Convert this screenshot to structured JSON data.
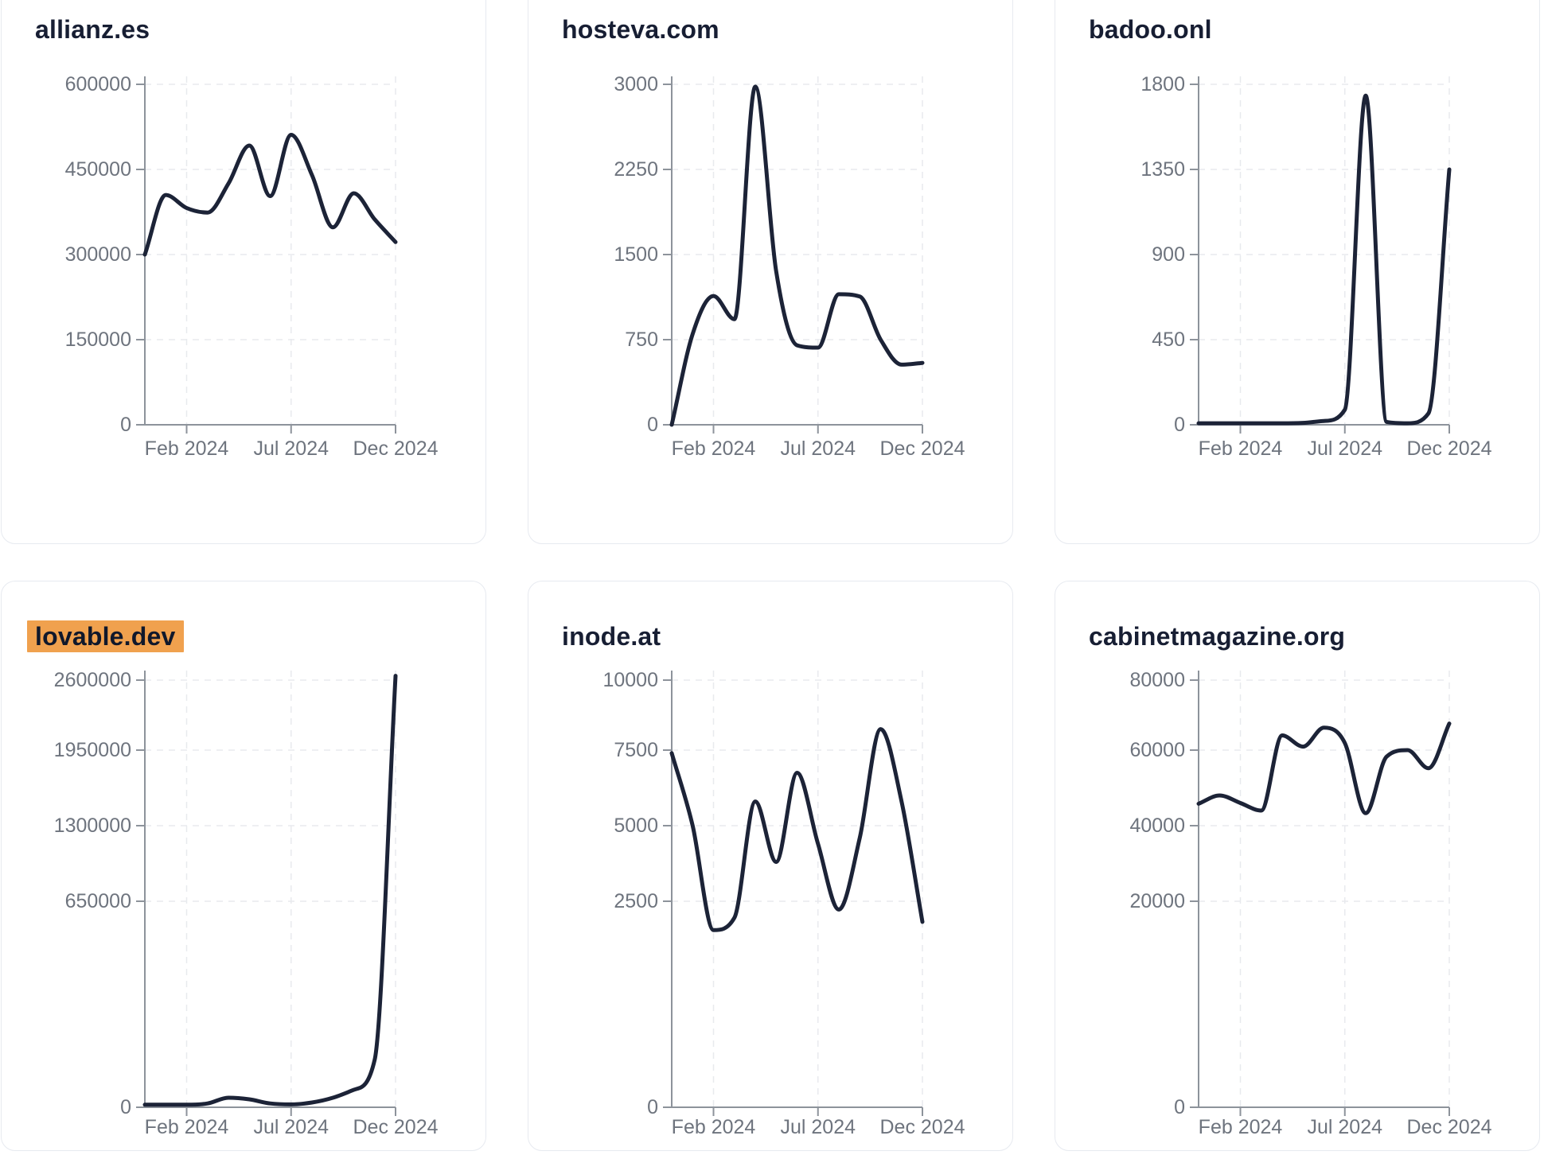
{
  "theme": {
    "page_bg": "#ffffff",
    "card_bg": "#ffffff",
    "card_border": "#e7eaf0",
    "title_color": "#171e33",
    "line_color": "#1c2337",
    "axis_color": "#8d939b",
    "grid_color": "#e8eaee",
    "tick_label_color": "#6e747e",
    "highlight_bg": "#f0a14e",
    "highlight_text": "#10182b"
  },
  "x_axis": {
    "tick_labels": [
      "Feb 2024",
      "Jul 2024",
      "Dec 2024"
    ],
    "tick_month_index": [
      2,
      7,
      12
    ]
  },
  "chart_data": [
    {
      "type": "line",
      "title": "allianz.es",
      "highlighted": false,
      "x": [
        "Dec 2023",
        "Jan 2024",
        "Feb 2024",
        "Mar 2024",
        "Apr 2024",
        "May 2024",
        "Jun 2024",
        "Jul 2024",
        "Aug 2024",
        "Sep 2024",
        "Oct 2024",
        "Nov 2024",
        "Dec 2024"
      ],
      "values": [
        300000,
        405000,
        382000,
        374000,
        425000,
        492000,
        403000,
        511000,
        440000,
        348000,
        408000,
        362000,
        322000
      ],
      "ylim": [
        0,
        600000
      ],
      "y_tick_labels": [
        "600000",
        "450000",
        "300000",
        "150000",
        "0"
      ],
      "x_tick_labels": [
        "Feb 2024",
        "Jul 2024",
        "Dec 2024"
      ],
      "grid": true,
      "legend": false
    },
    {
      "type": "line",
      "title": "hosteva.com",
      "highlighted": false,
      "x": [
        "Dec 2023",
        "Jan 2024",
        "Feb 2024",
        "Mar 2024",
        "Apr 2024",
        "May 2024",
        "Jun 2024",
        "Jul 2024",
        "Aug 2024",
        "Sep 2024",
        "Oct 2024",
        "Nov 2024",
        "Dec 2024"
      ],
      "values": [
        0,
        800,
        1135,
        930,
        2980,
        1350,
        700,
        680,
        1150,
        1130,
        750,
        530,
        545
      ],
      "ylim": [
        0,
        3000
      ],
      "y_tick_labels": [
        "3000",
        "2250",
        "1500",
        "750",
        "0"
      ],
      "x_tick_labels": [
        "Feb 2024",
        "Jul 2024",
        "Dec 2024"
      ],
      "grid": true,
      "legend": false
    },
    {
      "type": "line",
      "title": "badoo.onl",
      "highlighted": false,
      "x": [
        "Dec 2023",
        "Jan 2024",
        "Feb 2024",
        "Mar 2024",
        "Apr 2024",
        "May 2024",
        "Jun 2024",
        "Jul 2024",
        "Aug 2024",
        "Sep 2024",
        "Oct 2024",
        "Nov 2024",
        "Dec 2024"
      ],
      "values": [
        8,
        8,
        8,
        8,
        8,
        10,
        20,
        80,
        1740,
        15,
        8,
        60,
        1350
      ],
      "ylim": [
        0,
        1800
      ],
      "y_tick_labels": [
        "1800",
        "1350",
        "900",
        "450",
        "0"
      ],
      "x_tick_labels": [
        "Feb 2024",
        "Jul 2024",
        "Dec 2024"
      ],
      "grid": true,
      "legend": false
    },
    {
      "type": "line",
      "title": "lovable.dev",
      "highlighted": true,
      "x": [
        "Dec 2023",
        "Jan 2024",
        "Feb 2024",
        "Mar 2024",
        "Apr 2024",
        "May 2024",
        "Jun 2024",
        "Jul 2024",
        "Aug 2024",
        "Sep 2024",
        "Oct 2024",
        "Nov 2024",
        "Dec 2024"
      ],
      "values": [
        8000,
        8000,
        8000,
        12000,
        30000,
        25000,
        12000,
        9000,
        15000,
        30000,
        55000,
        150000,
        2640000
      ],
      "ylim": [
        0,
        2600000
      ],
      "y_tick_labels": [
        "2600000",
        "1950000",
        "1300000",
        "650000",
        "0"
      ],
      "x_tick_labels": [
        "Feb 2024",
        "Jul 2024",
        "Dec 2024"
      ],
      "grid": true,
      "legend": false
    },
    {
      "type": "line",
      "title": "inode.at",
      "highlighted": false,
      "x": [
        "Dec 2023",
        "Jan 2024",
        "Feb 2024",
        "Mar 2024",
        "Apr 2024",
        "May 2024",
        "Jun 2024",
        "Jul 2024",
        "Aug 2024",
        "Sep 2024",
        "Oct 2024",
        "Nov 2024",
        "Dec 2024"
      ],
      "values": [
        7400,
        5000,
        2150,
        2300,
        5800,
        3800,
        6750,
        4400,
        2400,
        4600,
        8250,
        5800,
        2250
      ],
      "ylim": [
        0,
        10000
      ],
      "y_tick_labels": [
        "10000",
        "7500",
        "5000",
        "2500",
        "0"
      ],
      "x_tick_labels": [
        "Feb 2024",
        "Jul 2024",
        "Dec 2024"
      ],
      "grid": true,
      "legend": false
    },
    {
      "type": "line",
      "title": "cabinetmagazine.org",
      "highlighted": false,
      "x": [
        "Dec 2023",
        "Jan 2024",
        "Feb 2024",
        "Mar 2024",
        "Apr 2024",
        "May 2024",
        "Jun 2024",
        "Jul 2024",
        "Aug 2024",
        "Sep 2024",
        "Oct 2024",
        "Nov 2024",
        "Dec 2024"
      ],
      "values": [
        45800,
        48000,
        46000,
        44000,
        64200,
        61000,
        66400,
        62000,
        43300,
        58300,
        60000,
        55200,
        67600
      ],
      "ylim": [
        0,
        80000
      ],
      "y_tick_labels": [
        "80000",
        "60000",
        "40000",
        "20000",
        "0"
      ],
      "x_tick_labels": [
        "Feb 2024",
        "Jul 2024",
        "Dec 2024"
      ],
      "grid": true,
      "legend": false
    }
  ]
}
